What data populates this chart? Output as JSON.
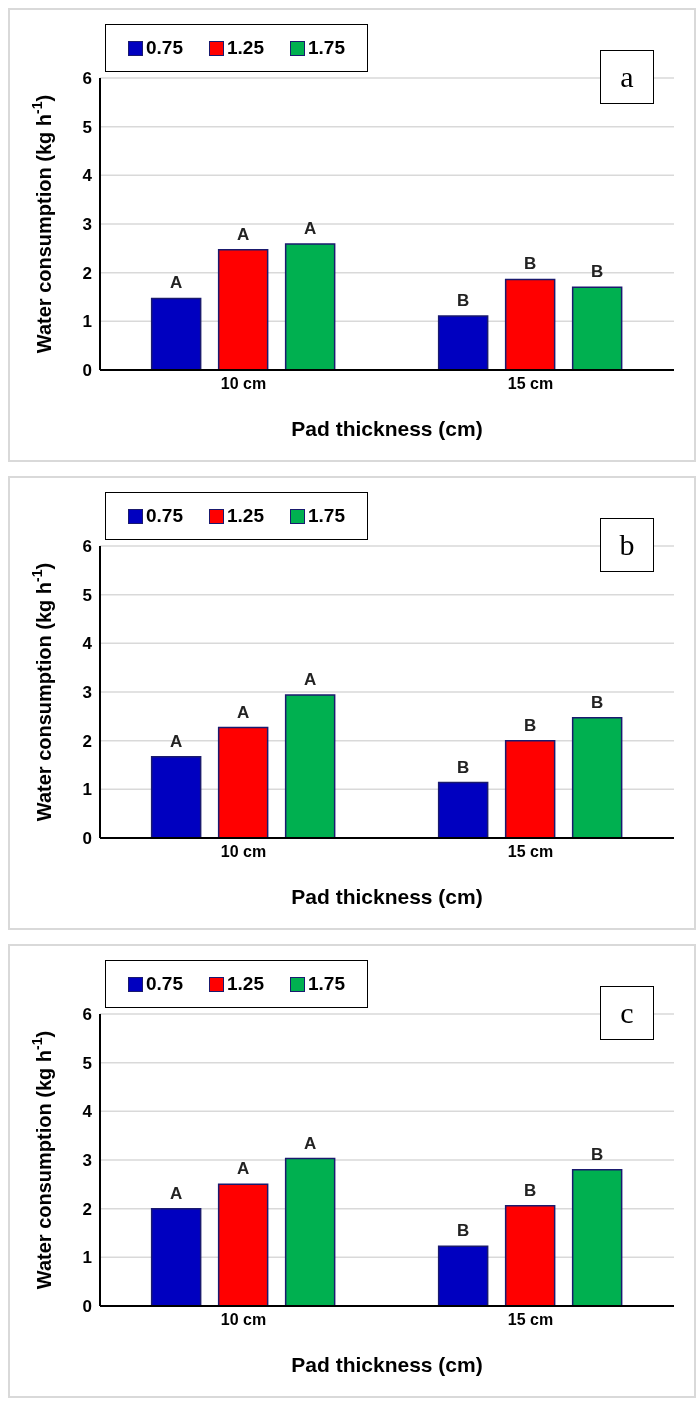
{
  "chart_data": [
    {
      "type": "bar",
      "xlabel": "Pad thickness (cm)",
      "ylabel": "Water consumption (kg h$^{-1}$)",
      "categories": [
        "10 cm",
        "15 cm"
      ],
      "series": [
        {
          "name": "0.75",
          "color": "#0000c0",
          "values": [
            1.47,
            1.11
          ],
          "value_labels": [
            "A",
            "B"
          ]
        },
        {
          "name": "1.25",
          "color": "#ff0000",
          "values": [
            2.47,
            1.86
          ],
          "value_labels": [
            "A",
            "B"
          ]
        },
        {
          "name": "1.75",
          "color": "#00b050",
          "values": [
            2.59,
            1.7
          ],
          "value_labels": [
            "A",
            "B"
          ]
        }
      ],
      "ylim": [
        0,
        6
      ],
      "yticks": [
        0,
        1,
        2,
        3,
        4,
        5,
        6
      ],
      "grid": "y",
      "legend": "top left",
      "annotations": [
        "a"
      ]
    },
    {
      "type": "bar",
      "xlabel": "Pad thickness (cm)",
      "ylabel": "Water consumption (kg h$^{-1}$)",
      "categories": [
        "10 cm",
        "15 cm"
      ],
      "series": [
        {
          "name": "0.75",
          "color": "#0000c0",
          "values": [
            1.67,
            1.14
          ],
          "value_labels": [
            "A",
            "B"
          ]
        },
        {
          "name": "1.25",
          "color": "#ff0000",
          "values": [
            2.27,
            2.0
          ],
          "value_labels": [
            "A",
            "B"
          ]
        },
        {
          "name": "1.75",
          "color": "#00b050",
          "values": [
            2.94,
            2.47
          ],
          "value_labels": [
            "A",
            "B"
          ]
        }
      ],
      "ylim": [
        0,
        6
      ],
      "yticks": [
        0,
        1,
        2,
        3,
        4,
        5,
        6
      ],
      "grid": "y",
      "legend": "top left",
      "annotations": [
        "b"
      ]
    },
    {
      "type": "bar",
      "xlabel": "Pad thickness (cm)",
      "ylabel": "Water consumption (kg h$^{-1}$)",
      "categories": [
        "10 cm",
        "15 cm"
      ],
      "series": [
        {
          "name": "0.75",
          "color": "#0000c0",
          "values": [
            2.0,
            1.23
          ],
          "value_labels": [
            "A",
            "B"
          ]
        },
        {
          "name": "1.25",
          "color": "#ff0000",
          "values": [
            2.5,
            2.06
          ],
          "value_labels": [
            "A",
            "B"
          ]
        },
        {
          "name": "1.75",
          "color": "#00b050",
          "values": [
            3.03,
            2.8
          ],
          "value_labels": [
            "A",
            "B"
          ]
        }
      ],
      "ylim": [
        0,
        6
      ],
      "yticks": [
        0,
        1,
        2,
        3,
        4,
        5,
        6
      ],
      "grid": "y",
      "legend": "top left",
      "annotations": [
        "c"
      ]
    }
  ]
}
